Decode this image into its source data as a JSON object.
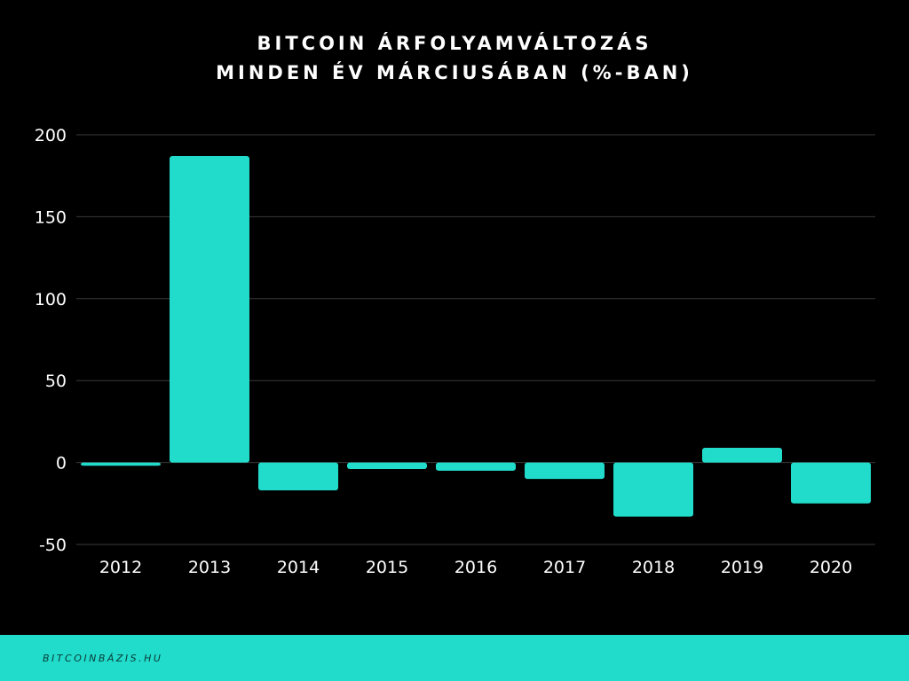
{
  "colors": {
    "background": "#000000",
    "bar": "#21dccb",
    "grid": "#3a3a3a",
    "text": "#ffffff",
    "footer_bg": "#21dccb",
    "footer_text": "#0a3a36"
  },
  "chart_data": {
    "type": "bar",
    "title_lines": [
      "BITCOIN ÁRFOLYAMVÁLTOZÁS",
      "MINDEN ÉV MÁRCIUSÁBAN (%-BAN)"
    ],
    "categories": [
      "2012",
      "2013",
      "2014",
      "2015",
      "2016",
      "2017",
      "2018",
      "2019",
      "2020"
    ],
    "values": [
      -2,
      187,
      -17,
      -4,
      -5,
      -10,
      -33,
      9,
      -25
    ],
    "y_ticks": [
      200,
      150,
      100,
      50,
      0,
      -50
    ],
    "ylim": [
      -50,
      200
    ],
    "grid": true,
    "legend": "none"
  },
  "footer": {
    "text": "BITCOINBÁZIS.HU"
  }
}
